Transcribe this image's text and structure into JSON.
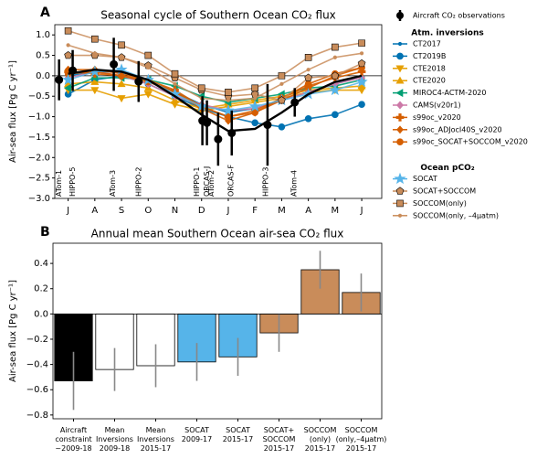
{
  "chart_data": [
    {
      "type": "line",
      "panel": "A",
      "title": "Seasonal cycle of Southern Ocean CO₂ flux",
      "y_label": "Air-sea flux [Pg C yr⁻¹]",
      "categories": [
        "J",
        "A",
        "S",
        "O",
        "N",
        "D",
        "J",
        "F",
        "M",
        "A",
        "M",
        "J"
      ],
      "xlim": [
        -0.5,
        11.75
      ],
      "ylim": [
        -3.0,
        1.25
      ],
      "yticks": [
        {
          "value": 1.0,
          "label": "1.0"
        },
        {
          "value": 0.5,
          "label": "0.5"
        },
        {
          "value": 0,
          "label": "0.0"
        },
        {
          "value": -0.5,
          "label": "−0.5"
        },
        {
          "value": -1.0,
          "label": "−1.0"
        },
        {
          "value": -1.5,
          "label": "−1.5"
        },
        {
          "value": -2.0,
          "label": "−2.0"
        },
        {
          "value": -2.5,
          "label": "−2.5"
        },
        {
          "value": -3.0,
          "label": "−3.0"
        }
      ],
      "observations": {
        "name": "Aircraft CO₂ observations",
        "color": "#000000",
        "x": [
          -0.34,
          0.17,
          1.71,
          2.64,
          5.03,
          5.2,
          5.62,
          6.13,
          7.47,
          8.49
        ],
        "values": [
          -0.1,
          0.13,
          0.28,
          -0.14,
          -1.1,
          -1.15,
          -1.55,
          -1.4,
          -1.2,
          -0.65
        ],
        "errors": [
          0.5,
          0.5,
          0.65,
          0.5,
          0.6,
          0.55,
          0.65,
          0.55,
          1.0,
          0.35
        ],
        "fit_values": [
          0.05,
          0.15,
          0.1,
          -0.1,
          -0.5,
          -0.95,
          -1.35,
          -1.3,
          -0.9,
          -0.45,
          -0.15,
          0.0
        ]
      },
      "campaigns": {
        "labels": [
          "ATom-1",
          "HIPPO-5",
          "ATom-3",
          "HIPPO-2",
          "HIPPO-1",
          "ORCAS-J",
          "ATom-2",
          "ORCAS-F",
          "HIPPO-3",
          "ATom-4"
        ],
        "x": [
          -0.34,
          0.17,
          1.68,
          2.64,
          4.82,
          5.2,
          5.37,
          6.1,
          7.4,
          8.46
        ]
      },
      "series_groups": [
        {
          "title": "Atm. inversions",
          "series": [
            {
              "name": "CT2017",
              "color": "#0072b2",
              "marker": ".",
              "values": [
                0,
                0.1,
                0.1,
                -0.1,
                -0.4,
                -0.7,
                -0.9,
                -0.8,
                -0.6,
                -0.4,
                -0.2,
                0
              ]
            },
            {
              "name": "CT2019B",
              "color": "#0072b2",
              "marker": "o",
              "values": [
                -0.45,
                -0.1,
                0,
                -0.2,
                -0.5,
                -0.8,
                -1.0,
                -1.15,
                -1.25,
                -1.05,
                -0.95,
                -0.7
              ]
            },
            {
              "name": "CTE2018",
              "color": "#e69f00",
              "marker": "v",
              "values": [
                -0.35,
                -0.35,
                -0.55,
                -0.45,
                -0.7,
                -0.85,
                -0.75,
                -0.65,
                -0.55,
                -0.4,
                -0.35,
                -0.35
              ]
            },
            {
              "name": "CTE2020",
              "color": "#e69f00",
              "marker": "^",
              "values": [
                -0.2,
                -0.15,
                -0.2,
                -0.3,
                -0.6,
                -0.8,
                -0.7,
                -0.6,
                -0.5,
                -0.35,
                -0.3,
                -0.25
              ]
            },
            {
              "name": "MIROC4-ACTM-2020",
              "color": "#009e73",
              "marker": "<",
              "values": [
                -0.3,
                -0.05,
                -0.05,
                -0.1,
                -0.25,
                -0.5,
                -0.65,
                -0.55,
                -0.45,
                -0.3,
                -0.25,
                -0.1
              ]
            },
            {
              "name": "CAMS(v20r1)",
              "color": "#cc79a7",
              "marker": "D",
              "values": [
                -0.05,
                0.1,
                0,
                -0.2,
                -0.5,
                -0.7,
                -0.85,
                -0.8,
                -0.6,
                -0.4,
                -0.2,
                -0.05
              ]
            },
            {
              "name": "s99oc_v2020",
              "color": "#d55e00",
              "marker": "P",
              "values": [
                0.1,
                0.05,
                0,
                -0.1,
                -0.35,
                -0.75,
                -1.0,
                -0.85,
                -0.55,
                -0.25,
                -0.05,
                0.1
              ]
            },
            {
              "name": "s99oc_ADJocI40S_v2020",
              "color": "#d55e00",
              "marker": "D",
              "values": [
                0.15,
                0.15,
                0.05,
                -0.1,
                -0.4,
                -0.8,
                -1.1,
                -0.9,
                -0.6,
                -0.3,
                0,
                0.2
              ]
            },
            {
              "name": "s99oc_SOCAT+SOCCOM_v2020",
              "color": "#d55e00",
              "marker": "o",
              "values": [
                0.05,
                0.1,
                0,
                -0.15,
                -0.4,
                -0.75,
                -1.0,
                -0.9,
                -0.55,
                -0.2,
                0.05,
                0.2
              ]
            }
          ]
        },
        {
          "title": "Ocean pCO₂",
          "series": [
            {
              "name": "SOCAT",
              "color": "#56b4e9",
              "marker": "*",
              "values": [
                -0.1,
                0.1,
                0.15,
                -0.1,
                -0.45,
                -0.75,
                -0.85,
                -0.75,
                -0.6,
                -0.45,
                -0.35,
                -0.15
              ]
            },
            {
              "name": "SOCAT+SOCCOM",
              "color": "#c98c5a",
              "marker": "p",
              "values": [
                0.5,
                0.5,
                0.45,
                0.25,
                -0.05,
                -0.35,
                -0.5,
                -0.45,
                -0.6,
                -0.05,
                0,
                0.3
              ]
            },
            {
              "name": "SOCCOM(only)",
              "color": "#c98c5a",
              "marker": "s",
              "values": [
                1.1,
                0.9,
                0.75,
                0.5,
                0.05,
                -0.3,
                -0.4,
                -0.3,
                0,
                0.45,
                0.7,
                0.8
              ]
            },
            {
              "name": "SOCCOM(only, –4µatm)",
              "color": "#c98c5a",
              "marker": ".",
              "values": [
                0.75,
                0.55,
                0.45,
                0.2,
                -0.2,
                -0.55,
                -0.6,
                -0.55,
                -0.2,
                0.15,
                0.45,
                0.55
              ]
            }
          ]
        }
      ]
    },
    {
      "type": "bar",
      "panel": "B",
      "title": "Annual mean Southern Ocean air-sea CO₂ flux",
      "y_label": "Air-sea flux [Pg C yr⁻¹]",
      "categories": [
        "Aircraft\nconstraint\n~2009-18",
        "Mean\nInversions\n2009-18",
        "Mean\nInversions\n2015-17",
        "SOCAT\n2009-17",
        "SOCAT\n2015-17",
        "SOCAT+\nSOCCOM\n2015-17",
        "SOCCOM\n(only)\n2015-17",
        "SOCCOM\n(only,–4μatm)\n2015-17"
      ],
      "values": [
        -0.53,
        -0.44,
        -0.41,
        -0.38,
        -0.34,
        -0.15,
        0.35,
        0.17
      ],
      "errors": [
        0.23,
        0.17,
        0.17,
        0.15,
        0.15,
        0.15,
        0.15,
        0.15
      ],
      "colors": [
        "#000000",
        "#ffffff",
        "#ffffff",
        "#56b4e9",
        "#56b4e9",
        "#c98c5a",
        "#c98c5a",
        "#c98c5a"
      ],
      "error_color": "#888888",
      "ylim": [
        -0.83,
        0.56
      ],
      "yticks": [
        {
          "value": 0.4,
          "label": "0.4"
        },
        {
          "value": 0.2,
          "label": "0.2"
        },
        {
          "value": 0,
          "label": "0.0"
        },
        {
          "value": -0.2,
          "label": "−0.2"
        },
        {
          "value": -0.4,
          "label": "−0.4"
        },
        {
          "value": -0.6,
          "label": "−0.6"
        },
        {
          "value": -0.8,
          "label": "−0.8"
        }
      ]
    }
  ]
}
